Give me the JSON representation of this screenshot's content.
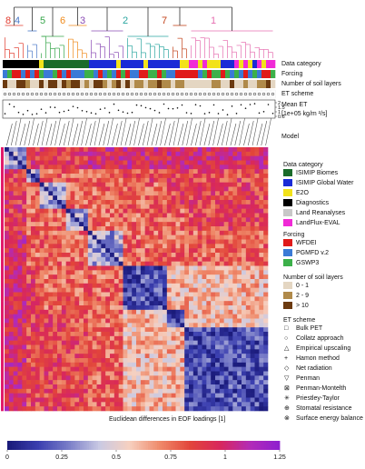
{
  "chart_data": {
    "type": "heatmap",
    "title": "",
    "colorbar_label": "Euclidean differences in EOF loadings [1]",
    "colorbar_ticks": [
      "0",
      "0.25",
      "0.5",
      "0.75",
      "1",
      "1.25"
    ],
    "value_range": [
      0,
      1.25
    ],
    "colormap": [
      "#1a1a7a",
      "#3b3fb0",
      "#7a7ec8",
      "#c9c9e3",
      "#f6d0c0",
      "#ef8a6a",
      "#e2453a",
      "#d8275c",
      "#b22bb8",
      "#8c1fd0"
    ],
    "n_models": 60,
    "cluster_labels": [
      {
        "label": "8",
        "color": "#e23b2e"
      },
      {
        "label": "4",
        "color": "#4a78c8"
      },
      {
        "label": "5",
        "color": "#36a64a"
      },
      {
        "label": "6",
        "color": "#f08a1a"
      },
      {
        "label": "3",
        "color": "#8a4bb5"
      },
      {
        "label": "2",
        "color": "#2aa6a0"
      },
      {
        "label": "7",
        "color": "#c2421a"
      },
      {
        "label": "1",
        "color": "#e66fb0"
      }
    ],
    "row_labels": [
      "Data category",
      "Forcing",
      "Number of soil layers",
      "ET scheme",
      "Mean ET",
      "[1e+05 kg/m ²/s]"
    ],
    "mean_et_ticks": [
      "2",
      "1.5",
      "1",
      "0.5"
    ],
    "axis_label": "Model"
  },
  "legend": {
    "data_category": {
      "title": "Data category",
      "items": [
        {
          "label": "ISIMIP Biomes",
          "color": "#1a6b2a"
        },
        {
          "label": "ISIMIP Global Water",
          "color": "#1a2bd6"
        },
        {
          "label": "E2O",
          "color": "#f2e21a"
        },
        {
          "label": "Diagnostics",
          "color": "#000000"
        },
        {
          "label": "Land Reanalyses",
          "color": "#c8c8c8"
        },
        {
          "label": "LandFlux-EVAL",
          "color": "#f02ad6"
        }
      ]
    },
    "forcing": {
      "title": "Forcing",
      "items": [
        {
          "label": "WFDEI",
          "color": "#e01a1a"
        },
        {
          "label": "PGMFD v.2",
          "color": "#3a7ad6"
        },
        {
          "label": "GSWP3",
          "color": "#3cb04a"
        }
      ]
    },
    "soil_layers": {
      "title": "Number of soil layers",
      "items": [
        {
          "label": "0 - 1",
          "color": "#e4d6c2"
        },
        {
          "label": "2 - 9",
          "color": "#b08a4a"
        },
        {
          "label": "> 10",
          "color": "#6b3a10"
        }
      ]
    },
    "et_scheme": {
      "title": "ET scheme",
      "items": [
        {
          "label": "Bulk PET",
          "icon": "square-icon"
        },
        {
          "label": "Collatz approach",
          "icon": "circle-icon"
        },
        {
          "label": "Empirical upscaling",
          "icon": "triangle-up-icon"
        },
        {
          "label": "Hamon method",
          "icon": "plus-icon"
        },
        {
          "label": "Net radiation",
          "icon": "diamond-icon"
        },
        {
          "label": "Penman",
          "icon": "triangle-down-icon"
        },
        {
          "label": "Penman-Montelth",
          "icon": "boxed-x-icon"
        },
        {
          "label": "Priestley-Taylor",
          "icon": "asterisk-icon"
        },
        {
          "label": "Stomatal resistance",
          "icon": "circle-plus-icon"
        },
        {
          "label": "Surface energy balance",
          "icon": "circle-x-icon"
        }
      ]
    }
  }
}
